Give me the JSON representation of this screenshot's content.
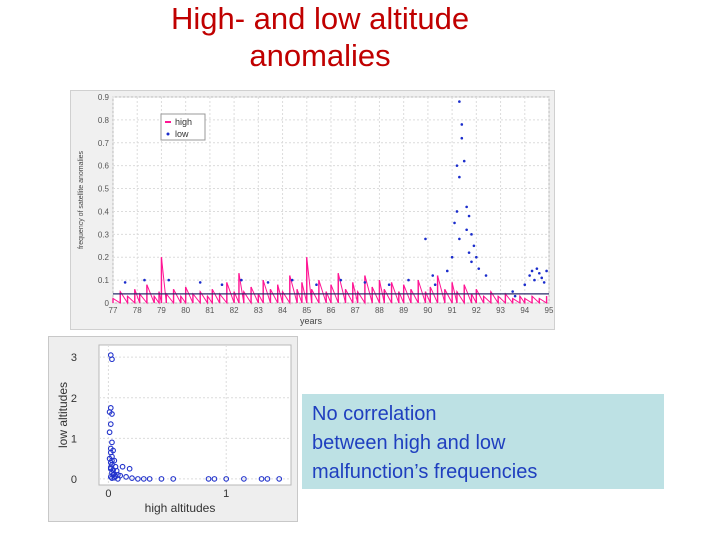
{
  "slide": {
    "title_line1": "High- and low altitude",
    "title_line2": "anomalies"
  },
  "colors": {
    "title": "#c00000",
    "high": "#ff1493",
    "low": "#1a2ccc",
    "scatter": "#2233cc",
    "callout_bg": "#bde1e4",
    "callout_text": "#1f3fbf"
  },
  "chart_data": [
    {
      "type": "line",
      "title": "",
      "xlabel": "years",
      "ylabel": "frequency of satellite anomalies",
      "xlim": [
        77,
        95
      ],
      "ylim": [
        0,
        0.9
      ],
      "xticks": [
        "77",
        "78",
        "79",
        "80",
        "81",
        "82",
        "83",
        "84",
        "85",
        "86",
        "87",
        "88",
        "89",
        "90",
        "91",
        "92",
        "93",
        "94",
        "95"
      ],
      "yticks": [
        "0",
        "0.1",
        "0.2",
        "0.3",
        "0.4",
        "0.5",
        "0.6",
        "0.7",
        "0.8",
        "0.9"
      ],
      "grid": true,
      "legend": {
        "placement": "top-left",
        "entries": [
          "high",
          "low"
        ]
      },
      "series": [
        {
          "name": "high",
          "style": "line",
          "x": [
            77.0,
            77.3,
            77.6,
            77.9,
            78.1,
            78.4,
            78.7,
            78.9,
            79.0,
            79.2,
            79.5,
            79.8,
            80.0,
            80.3,
            80.6,
            80.9,
            81.1,
            81.4,
            81.7,
            82.0,
            82.2,
            82.4,
            82.7,
            83.0,
            83.2,
            83.5,
            83.8,
            84.0,
            84.3,
            84.6,
            84.8,
            85.0,
            85.2,
            85.5,
            85.8,
            86.0,
            86.3,
            86.6,
            86.9,
            87.1,
            87.4,
            87.7,
            88.0,
            88.2,
            88.5,
            88.8,
            89.0,
            89.3,
            89.6,
            89.9,
            90.1,
            90.4,
            90.7,
            91.0,
            91.2,
            91.5,
            91.8,
            92.0,
            92.3,
            92.6,
            92.9,
            93.2,
            93.5,
            93.8,
            94.0,
            94.3,
            94.6,
            94.9
          ],
          "values": [
            0.02,
            0.05,
            0.03,
            0.06,
            0.04,
            0.08,
            0.03,
            0.05,
            0.2,
            0.04,
            0.06,
            0.03,
            0.07,
            0.04,
            0.05,
            0.03,
            0.06,
            0.04,
            0.09,
            0.05,
            0.13,
            0.05,
            0.07,
            0.04,
            0.1,
            0.06,
            0.08,
            0.05,
            0.12,
            0.06,
            0.09,
            0.2,
            0.06,
            0.1,
            0.05,
            0.08,
            0.13,
            0.06,
            0.09,
            0.05,
            0.12,
            0.07,
            0.1,
            0.06,
            0.09,
            0.05,
            0.08,
            0.06,
            0.1,
            0.05,
            0.07,
            0.12,
            0.06,
            0.09,
            0.05,
            0.08,
            0.04,
            0.06,
            0.03,
            0.05,
            0.03,
            0.04,
            0.02,
            0.03,
            0.02,
            0.03,
            0.02,
            0.03
          ]
        },
        {
          "name": "low",
          "style": "points",
          "x": [
            77.5,
            78.3,
            79.3,
            80.6,
            81.5,
            82.3,
            83.4,
            84.4,
            85.4,
            86.4,
            87.4,
            88.4,
            89.2,
            89.9,
            90.2,
            90.3,
            90.8,
            91.0,
            91.1,
            91.2,
            91.3,
            91.3,
            91.4,
            91.4,
            91.5,
            91.6,
            91.7,
            91.8,
            91.9,
            92.0,
            92.1,
            92.4,
            93.5,
            93.6,
            94.0,
            94.2,
            94.3,
            94.4,
            94.5,
            94.6,
            94.7,
            94.8,
            94.9,
            91.2,
            91.3,
            91.6,
            91.7,
            91.8
          ],
          "values": [
            0.09,
            0.1,
            0.1,
            0.09,
            0.08,
            0.1,
            0.09,
            0.1,
            0.08,
            0.1,
            0.09,
            0.08,
            0.1,
            0.28,
            0.12,
            0.08,
            0.14,
            0.2,
            0.35,
            0.6,
            0.88,
            0.55,
            0.78,
            0.72,
            0.62,
            0.42,
            0.38,
            0.3,
            0.25,
            0.2,
            0.15,
            0.12,
            0.05,
            0.03,
            0.08,
            0.12,
            0.14,
            0.1,
            0.15,
            0.13,
            0.11,
            0.09,
            0.14,
            0.4,
            0.28,
            0.32,
            0.22,
            0.18
          ]
        }
      ]
    },
    {
      "type": "scatter",
      "title": "",
      "xlabel": "high altitudes",
      "ylabel": "low altitudes",
      "xlim": [
        -0.08,
        1.55
      ],
      "ylim": [
        -0.15,
        3.3
      ],
      "xticks": [
        "0",
        "1"
      ],
      "yticks": [
        "0",
        "1",
        "2",
        "3"
      ],
      "grid": true,
      "series": [
        {
          "x": [
            0.02,
            0.03,
            0.01,
            0.02,
            0.03,
            0.02,
            0.01,
            0.03,
            0.02,
            0.04,
            0.02,
            0.03,
            0.01,
            0.05,
            0.02,
            0.03,
            0.06,
            0.02,
            0.04,
            0.07,
            0.03,
            0.05,
            0.08,
            0.1,
            0.12,
            0.15,
            0.18,
            0.2,
            0.25,
            0.3,
            0.35,
            0.45,
            0.55,
            0.85,
            0.9,
            1.0,
            1.15,
            1.3,
            1.35,
            1.45,
            0.02,
            0.03,
            0.05,
            0.04,
            0.06,
            0.08,
            0.02,
            0.03
          ],
          "values": [
            3.05,
            2.95,
            1.65,
            1.75,
            1.6,
            1.35,
            1.15,
            0.9,
            0.75,
            0.7,
            0.65,
            0.55,
            0.5,
            0.45,
            0.4,
            0.35,
            0.3,
            0.28,
            0.22,
            0.2,
            0.15,
            0.12,
            0.1,
            0.08,
            0.3,
            0.05,
            0.25,
            0.02,
            0.0,
            0.0,
            0.0,
            0.0,
            0.0,
            0.0,
            0.0,
            0.0,
            0.0,
            0.0,
            0.0,
            0.0,
            0.05,
            0.02,
            0.03,
            0.1,
            0.06,
            0.0,
            0.25,
            0.45
          ]
        }
      ]
    }
  ],
  "callout": {
    "line1": "No correlation",
    "line2": "between high and low",
    "line3": "malfunction’s frequencies"
  }
}
